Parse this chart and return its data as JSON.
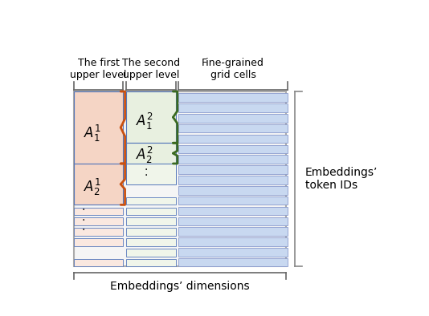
{
  "fig_width": 5.34,
  "fig_height": 3.94,
  "bg_color": "#ffffff",
  "col1_color": "#f5d5c5",
  "col1_color_light": "#fae8e0",
  "col2_color": "#e8f0e0",
  "col2_color_light": "#f0f5ea",
  "col3_color": "#c8d8f0",
  "border_blue": "#5577bb",
  "brace_orange": "#c85010",
  "brace_green": "#3a6a20",
  "label_top1": "The first\nupper level",
  "label_top2": "The second\nupper level",
  "label_top3": "Fine-grained\ngrid cells",
  "label_bottom": "Embeddings’ dimensions",
  "label_right": "Embeddings’\ntoken IDs",
  "text_A11": "$A^1_1$",
  "text_A12": "$A^1_2$",
  "text_A21": "$A^2_1$",
  "text_A22": "$A^2_2$"
}
